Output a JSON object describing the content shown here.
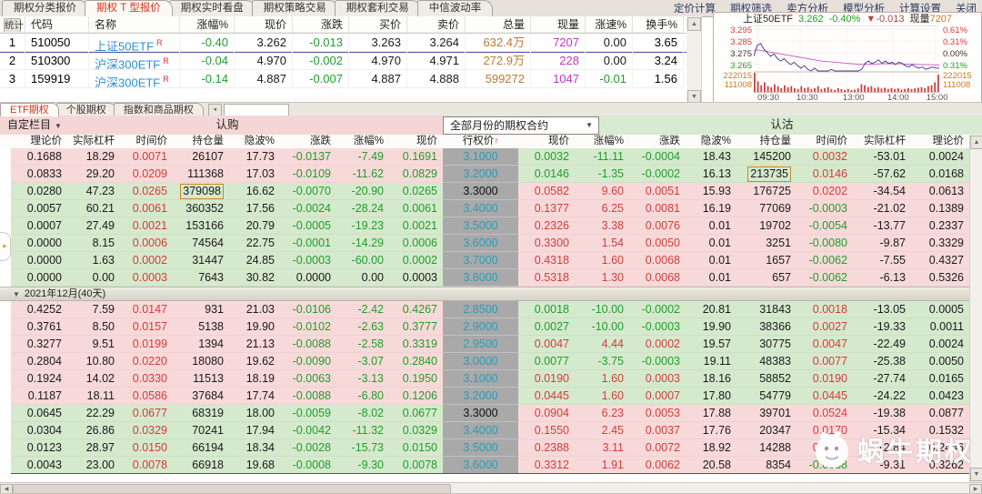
{
  "top_tabs": [
    {
      "label": "期权分类报价",
      "active": false
    },
    {
      "label": "期权 T 型报价",
      "active": true
    },
    {
      "label": "期权实时看盘",
      "active": false
    },
    {
      "label": "期权策略交易",
      "active": false
    },
    {
      "label": "期权套利交易",
      "active": false
    },
    {
      "label": "中信波动率",
      "active": false
    }
  ],
  "top_menu": [
    "定价计算",
    "期权筛选",
    "卖方分析",
    "模型分析",
    "计算设置",
    "关闭"
  ],
  "quote_table": {
    "corner_label": "统计",
    "headers": [
      "代码",
      "名称",
      "涨幅%",
      "现价",
      "涨跌",
      "买价",
      "卖价",
      "总量",
      "现量",
      "涨速%",
      "换手%"
    ],
    "rows": [
      {
        "seq": "1",
        "code": "510050",
        "name": "上证50ETF",
        "flag": "R",
        "pct": "-0.40",
        "price": "3.262",
        "chg": "-0.013",
        "bid": "3.263",
        "ask": "3.264",
        "vol": "632.4万",
        "cur": "7207",
        "speed": "0.00",
        "turn": "3.65",
        "selected": true
      },
      {
        "seq": "2",
        "code": "510300",
        "name": "沪深300ETF",
        "flag": "R",
        "pct": "-0.04",
        "price": "4.970",
        "chg": "-0.002",
        "bid": "4.970",
        "ask": "4.971",
        "vol": "272.9万",
        "cur": "228",
        "speed": "0.00",
        "turn": "3.24",
        "selected": false
      },
      {
        "seq": "3",
        "code": "159919",
        "name": "沪深300ETF",
        "flag": "R",
        "pct": "-0.14",
        "price": "4.887",
        "chg": "-0.007",
        "bid": "4.887",
        "ask": "4.888",
        "vol": "599272",
        "cur": "1047",
        "speed": "-0.01",
        "turn": "1.56",
        "selected": false
      }
    ]
  },
  "mini_chart": {
    "symbol": "上证50ETF",
    "price": "3.262",
    "pct": "-0.40%",
    "change": "▼-0.013",
    "vol_label": "现量",
    "vol_value": "7207",
    "left_axis": [
      "3.295",
      "3.285",
      "3.275",
      "3.265"
    ],
    "left_axis_colors": [
      "red",
      "red",
      "blk",
      "grn"
    ],
    "right_axis": [
      "0.61%",
      "0.31%",
      "0.00%",
      "0.31%"
    ],
    "right_axis_colors": [
      "red",
      "red",
      "blk",
      "grn"
    ],
    "vol_axis": [
      "222015",
      "111008"
    ],
    "x_ticks": [
      "09:30",
      "10:30",
      "13:00",
      "14:00",
      "15:00"
    ],
    "price_series": [
      3.272,
      3.281,
      3.283,
      3.278,
      3.275,
      3.272,
      3.274,
      3.27,
      3.268,
      3.27,
      3.267,
      3.265,
      3.267,
      3.264,
      3.262,
      3.264,
      3.261,
      3.259,
      3.262,
      3.259,
      3.258,
      3.259,
      3.258,
      3.261,
      3.259,
      3.258,
      3.259,
      3.258,
      3.259,
      3.258,
      3.259,
      3.258,
      3.261,
      3.266,
      3.268,
      3.266,
      3.267,
      3.269,
      3.266,
      3.268,
      3.266,
      3.267,
      3.265,
      3.267,
      3.266,
      3.264,
      3.263,
      3.265,
      3.263,
      3.262,
      3.263,
      3.261,
      3.262,
      3.263,
      3.262,
      3.262
    ],
    "avg_series": [
      3.277,
      3.2775,
      3.277,
      3.2765,
      3.276,
      3.2755,
      3.275,
      3.2745,
      3.274,
      3.2735,
      3.273,
      3.2725,
      3.272,
      3.2715,
      3.271,
      3.2705,
      3.27,
      3.2695,
      3.269,
      3.2685,
      3.268,
      3.2678,
      3.2675,
      3.2672,
      3.267,
      3.2668,
      3.2665,
      3.2662,
      3.266,
      3.2658,
      3.2656,
      3.2654,
      3.2652,
      3.2652,
      3.2653,
      3.2654,
      3.2655,
      3.2656,
      3.2657,
      3.2658,
      3.2658,
      3.2658,
      3.2657,
      3.2657,
      3.2656,
      3.2655,
      3.2654,
      3.2653,
      3.2652,
      3.2651,
      3.265,
      3.265,
      3.2649,
      3.2649,
      3.2648,
      3.2648
    ],
    "volume_series": [
      1.0,
      0.55,
      0.35,
      0.5,
      0.3,
      0.25,
      0.4,
      0.3,
      0.2,
      0.35,
      0.25,
      0.3,
      0.2,
      0.15,
      0.3,
      0.2,
      0.25,
      0.15,
      0.2,
      0.3,
      0.15,
      0.2,
      0.25,
      0.15,
      0.1,
      0.2,
      0.15,
      0.1,
      0.15,
      0.1,
      0.12,
      0.18,
      0.4,
      0.35,
      0.25,
      0.3,
      0.2,
      0.25,
      0.18,
      0.22,
      0.15,
      0.2,
      0.15,
      0.18,
      0.12,
      0.15,
      0.2,
      0.15,
      0.18,
      0.22,
      0.25,
      0.2,
      0.3,
      0.35,
      0.5,
      0.9
    ]
  },
  "sub_tabs": [
    {
      "label": "ETF期权",
      "active": true
    },
    {
      "label": "个股期权",
      "active": false
    },
    {
      "label": "指数和商品期权",
      "active": false
    }
  ],
  "t_table": {
    "custom_menu": "自定栏目",
    "calls_title": "认购",
    "puts_title": "认沽",
    "month_filter": "全部月份的期权合约",
    "call_headers": [
      "理论价",
      "实际杠杆",
      "时间价",
      "持仓量",
      "隐波%",
      "涨跌",
      "涨幅%",
      "现价"
    ],
    "strike_header": "行权价",
    "put_headers": [
      "现价",
      "涨幅%",
      "涨跌",
      "隐波%",
      "持仓量",
      "时间价",
      "实际杠杆",
      "理论价"
    ],
    "groups": [
      {
        "label": "",
        "rows": [
          {
            "strike": "3.1000",
            "strike_hl": false,
            "call_itm": true,
            "call": [
              "0.1688",
              "18.29",
              "0.0071",
              "26107",
              "17.73",
              "-0.0137",
              "-7.49",
              "0.1691"
            ],
            "put": [
              "0.0032",
              "-11.11",
              "-0.0004",
              "18.43",
              "145200",
              "0.0032",
              "-53.01",
              "0.0024"
            ],
            "call_oi_box": false,
            "put_oi_box": false,
            "selected": false
          },
          {
            "strike": "3.2000",
            "strike_hl": false,
            "call_itm": true,
            "call": [
              "0.0833",
              "29.20",
              "0.0209",
              "111368",
              "17.03",
              "-0.0109",
              "-11.62",
              "0.0829"
            ],
            "put": [
              "0.0146",
              "-1.35",
              "-0.0002",
              "16.13",
              "213735",
              "0.0146",
              "-57.62",
              "0.0168"
            ],
            "call_oi_box": false,
            "put_oi_box": true,
            "selected": false
          },
          {
            "strike": "3.3000",
            "strike_hl": true,
            "call_itm": false,
            "call": [
              "0.0280",
              "47.23",
              "0.0265",
              "379098",
              "16.62",
              "-0.0070",
              "-20.90",
              "0.0265"
            ],
            "put": [
              "0.0582",
              "9.60",
              "0.0051",
              "15.93",
              "176725",
              "0.0202",
              "-34.54",
              "0.0613"
            ],
            "call_oi_box": true,
            "put_oi_box": false,
            "selected": false
          },
          {
            "strike": "3.4000",
            "strike_hl": false,
            "call_itm": false,
            "call": [
              "0.0057",
              "60.21",
              "0.0061",
              "360352",
              "17.56",
              "-0.0024",
              "-28.24",
              "0.0061"
            ],
            "put": [
              "0.1377",
              "6.25",
              "0.0081",
              "16.19",
              "77069",
              "-0.0003",
              "-21.02",
              "0.1389"
            ],
            "call_oi_box": false,
            "put_oi_box": false,
            "selected": false
          },
          {
            "strike": "3.5000",
            "strike_hl": false,
            "call_itm": false,
            "call": [
              "0.0007",
              "27.49",
              "0.0021",
              "153166",
              "20.79",
              "-0.0005",
              "-19.23",
              "0.0021"
            ],
            "put": [
              "0.2326",
              "3.38",
              "0.0076",
              "0.01",
              "19702",
              "-0.0054",
              "-13.77",
              "0.2337"
            ],
            "call_oi_box": false,
            "put_oi_box": false,
            "selected": false
          },
          {
            "strike": "3.6000",
            "strike_hl": false,
            "call_itm": false,
            "call": [
              "0.0000",
              "8.15",
              "0.0006",
              "74564",
              "22.75",
              "-0.0001",
              "-14.29",
              "0.0006"
            ],
            "put": [
              "0.3300",
              "1.54",
              "0.0050",
              "0.01",
              "3251",
              "-0.0080",
              "-9.87",
              "0.3329"
            ],
            "call_oi_box": false,
            "put_oi_box": false,
            "selected": false
          },
          {
            "strike": "3.7000",
            "strike_hl": false,
            "call_itm": false,
            "call": [
              "0.0000",
              "1.63",
              "0.0002",
              "31447",
              "24.85",
              "-0.0003",
              "-60.00",
              "0.0002"
            ],
            "put": [
              "0.4318",
              "1.60",
              "0.0068",
              "0.01",
              "1657",
              "-0.0062",
              "-7.55",
              "0.4327"
            ],
            "call_oi_box": false,
            "put_oi_box": false,
            "selected": false
          },
          {
            "strike": "3.8000",
            "strike_hl": false,
            "call_itm": false,
            "call": [
              "0.0000",
              "0.00",
              "0.0003",
              "7643",
              "30.82",
              "0.0000",
              "0.00",
              "0.0003"
            ],
            "put": [
              "0.5318",
              "1.30",
              "0.0068",
              "0.01",
              "657",
              "-0.0062",
              "-6.13",
              "0.5326"
            ],
            "call_oi_box": false,
            "put_oi_box": false,
            "selected": false
          }
        ]
      },
      {
        "label": "2021年12月(40天)",
        "rows": [
          {
            "strike": "2.8500",
            "strike_hl": false,
            "call_itm": true,
            "call": [
              "0.4252",
              "7.59",
              "0.0147",
              "931",
              "21.03",
              "-0.0106",
              "-2.42",
              "0.4267"
            ],
            "put": [
              "0.0018",
              "-10.00",
              "-0.0002",
              "20.81",
              "31843",
              "0.0018",
              "-13.05",
              "0.0005"
            ],
            "call_oi_box": false,
            "put_oi_box": false,
            "selected": false
          },
          {
            "strike": "2.9000",
            "strike_hl": false,
            "call_itm": true,
            "call": [
              "0.3761",
              "8.50",
              "0.0157",
              "5138",
              "19.90",
              "-0.0102",
              "-2.63",
              "0.3777"
            ],
            "put": [
              "0.0027",
              "-10.00",
              "-0.0003",
              "19.90",
              "38366",
              "0.0027",
              "-19.33",
              "0.0011"
            ],
            "call_oi_box": false,
            "put_oi_box": false,
            "selected": false
          },
          {
            "strike": "2.9500",
            "strike_hl": false,
            "call_itm": true,
            "call": [
              "0.3277",
              "9.51",
              "0.0199",
              "1394",
              "21.13",
              "-0.0088",
              "-2.58",
              "0.3319"
            ],
            "put": [
              "0.0047",
              "4.44",
              "0.0002",
              "19.57",
              "30775",
              "0.0047",
              "-22.49",
              "0.0024"
            ],
            "call_oi_box": false,
            "put_oi_box": false,
            "selected": false
          },
          {
            "strike": "3.0000",
            "strike_hl": false,
            "call_itm": true,
            "call": [
              "0.2804",
              "10.80",
              "0.0220",
              "18080",
              "19.62",
              "-0.0090",
              "-3.07",
              "0.2840"
            ],
            "put": [
              "0.0077",
              "-3.75",
              "-0.0003",
              "19.11",
              "48383",
              "0.0077",
              "-25.38",
              "0.0050"
            ],
            "call_oi_box": false,
            "put_oi_box": false,
            "selected": false
          },
          {
            "strike": "3.1000",
            "strike_hl": false,
            "call_itm": true,
            "call": [
              "0.1924",
              "14.02",
              "0.0330",
              "11513",
              "18.19",
              "-0.0063",
              "-3.13",
              "0.1950"
            ],
            "put": [
              "0.0190",
              "1.60",
              "0.0003",
              "18.16",
              "58852",
              "0.0190",
              "-27.74",
              "0.0165"
            ],
            "call_oi_box": false,
            "put_oi_box": false,
            "selected": false
          },
          {
            "strike": "3.2000",
            "strike_hl": false,
            "call_itm": true,
            "call": [
              "0.1187",
              "18.11",
              "0.0586",
              "37684",
              "17.74",
              "-0.0088",
              "-6.80",
              "0.1206"
            ],
            "put": [
              "0.0445",
              "1.60",
              "0.0007",
              "17.80",
              "54779",
              "0.0445",
              "-24.22",
              "0.0423"
            ],
            "call_oi_box": false,
            "put_oi_box": false,
            "selected": false
          },
          {
            "strike": "3.3000",
            "strike_hl": true,
            "call_itm": false,
            "call": [
              "0.0645",
              "22.29",
              "0.0677",
              "68319",
              "18.00",
              "-0.0059",
              "-8.02",
              "0.0677"
            ],
            "put": [
              "0.0904",
              "6.23",
              "0.0053",
              "17.88",
              "39701",
              "0.0524",
              "-19.38",
              "0.0877"
            ],
            "call_oi_box": false,
            "put_oi_box": false,
            "selected": false
          },
          {
            "strike": "3.4000",
            "strike_hl": false,
            "call_itm": false,
            "call": [
              "0.0304",
              "26.86",
              "0.0329",
              "70241",
              "17.94",
              "-0.0042",
              "-11.32",
              "0.0329"
            ],
            "put": [
              "0.1550",
              "2.45",
              "0.0037",
              "17.76",
              "20347",
              "0.0170",
              "-15.34",
              "0.1532"
            ],
            "call_oi_box": false,
            "put_oi_box": false,
            "selected": false
          },
          {
            "strike": "3.5000",
            "strike_hl": false,
            "call_itm": false,
            "call": [
              "0.0123",
              "28.97",
              "0.0150",
              "66194",
              "18.34",
              "-0.0028",
              "-15.73",
              "0.0150"
            ],
            "put": [
              "0.2388",
              "3.11",
              "0.0072",
              "18.92",
              "14288",
              "0.0008",
              "-12.84",
              "0.2446"
            ],
            "call_oi_box": false,
            "put_oi_box": false,
            "selected": false
          },
          {
            "strike": "3.6000",
            "strike_hl": false,
            "call_itm": false,
            "call": [
              "0.0043",
              "23.00",
              "0.0078",
              "66918",
              "19.68",
              "-0.0008",
              "-9.30",
              "0.0078"
            ],
            "put": [
              "0.3312",
              "1.91",
              "0.0062",
              "20.58",
              "8354",
              "-0.0068",
              "-9.31",
              "0.3262"
            ],
            "call_oi_box": false,
            "put_oi_box": false,
            "selected": true
          }
        ]
      }
    ]
  },
  "watermark": {
    "text": "蜗牛期权"
  }
}
